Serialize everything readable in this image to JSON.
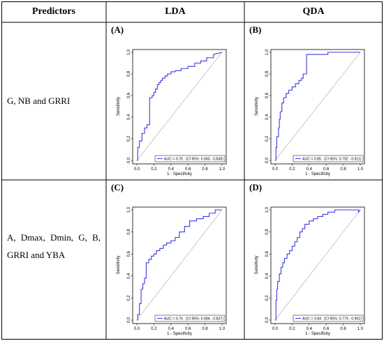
{
  "table": {
    "headers": {
      "predictors": "Predictors",
      "lda": "LDA",
      "qda": "QDA"
    },
    "rows": [
      {
        "predictors": "G, NB and GRRI"
      },
      {
        "predictors": "A, Dmax, Dmin, G, B, GRRI and YBA"
      }
    ]
  },
  "chart_data": [
    {
      "type": "line",
      "panel_label": "(A)",
      "xlabel": "1 - Specificity",
      "ylabel": "Sensitivity",
      "xlim": [
        0,
        1
      ],
      "ylim": [
        0,
        1
      ],
      "xticks": [
        "0.0",
        "0.2",
        "0.4",
        "0.6",
        "0.8",
        "1.0"
      ],
      "yticks": [
        "0.0",
        "0.2",
        "0.4",
        "0.6",
        "0.8",
        "1.0"
      ],
      "legend": {
        "line": "AUC = 0.76",
        "ci": "(CI 95%: 0.683 - 0.838)",
        "position": "bottom-right"
      },
      "series": [
        {
          "color": "#3a3ae0",
          "x": [
            0,
            0.01,
            0.01,
            0.03,
            0.03,
            0.06,
            0.06,
            0.09,
            0.09,
            0.12,
            0.12,
            0.15,
            0.15,
            0.18,
            0.18,
            0.2,
            0.2,
            0.22,
            0.22,
            0.24,
            0.24,
            0.26,
            0.26,
            0.28,
            0.28,
            0.3,
            0.3,
            0.33,
            0.33,
            0.36,
            0.36,
            0.4,
            0.4,
            0.45,
            0.45,
            0.52,
            0.52,
            0.6,
            0.6,
            0.68,
            0.68,
            0.75,
            0.75,
            0.82,
            0.82,
            0.9,
            0.9,
            1.0
          ],
          "y": [
            0,
            0,
            0.12,
            0.12,
            0.18,
            0.18,
            0.25,
            0.25,
            0.3,
            0.3,
            0.33,
            0.33,
            0.58,
            0.58,
            0.6,
            0.6,
            0.63,
            0.63,
            0.66,
            0.66,
            0.7,
            0.7,
            0.72,
            0.72,
            0.74,
            0.74,
            0.76,
            0.76,
            0.78,
            0.78,
            0.8,
            0.8,
            0.82,
            0.82,
            0.83,
            0.83,
            0.85,
            0.85,
            0.87,
            0.87,
            0.9,
            0.9,
            0.92,
            0.92,
            0.95,
            0.95,
            0.98,
            1.0
          ]
        },
        {
          "color": "#b5b5b5",
          "x": [
            0,
            1
          ],
          "y": [
            0,
            1
          ]
        }
      ]
    },
    {
      "type": "line",
      "panel_label": "(B)",
      "xlabel": "1 - Specificity",
      "ylabel": "Sensitivity",
      "xlim": [
        0,
        1
      ],
      "ylim": [
        0,
        1
      ],
      "xticks": [
        "0.0",
        "0.2",
        "0.4",
        "0.6",
        "0.8",
        "1.0"
      ],
      "yticks": [
        "0.0",
        "0.2",
        "0.4",
        "0.6",
        "0.8",
        "1.0"
      ],
      "legend": {
        "line": "AUC = 0.85",
        "ci": "(CI 95%: 0.792 - 0.911)",
        "position": "bottom-right"
      },
      "series": [
        {
          "color": "#3a3ae0",
          "x": [
            0,
            0.01,
            0.01,
            0.02,
            0.02,
            0.04,
            0.04,
            0.05,
            0.05,
            0.06,
            0.06,
            0.08,
            0.08,
            0.1,
            0.1,
            0.13,
            0.13,
            0.16,
            0.16,
            0.2,
            0.2,
            0.24,
            0.24,
            0.28,
            0.28,
            0.31,
            0.31,
            0.33,
            0.33,
            0.37,
            0.37,
            0.62,
            0.62,
            1.0
          ],
          "y": [
            0,
            0,
            0.12,
            0.12,
            0.22,
            0.22,
            0.3,
            0.3,
            0.38,
            0.38,
            0.45,
            0.45,
            0.53,
            0.53,
            0.58,
            0.58,
            0.62,
            0.62,
            0.65,
            0.65,
            0.68,
            0.68,
            0.71,
            0.71,
            0.74,
            0.74,
            0.76,
            0.76,
            0.8,
            0.8,
            0.98,
            0.98,
            1.0,
            1.0
          ]
        },
        {
          "color": "#b5b5b5",
          "x": [
            0,
            1
          ],
          "y": [
            0,
            1
          ]
        }
      ]
    },
    {
      "type": "line",
      "panel_label": "(C)",
      "xlabel": "1 - Specificity",
      "ylabel": "Sensitivity",
      "xlim": [
        0,
        1
      ],
      "ylim": [
        0,
        1
      ],
      "xticks": [
        "0.0",
        "0.2",
        "0.4",
        "0.6",
        "0.8",
        "1.0"
      ],
      "yticks": [
        "0.0",
        "0.2",
        "0.4",
        "0.6",
        "0.8",
        "1.0"
      ],
      "legend": {
        "line": "AUC = 0.76",
        "ci": "(CI 95%: 0.684 - 0.837)",
        "position": "bottom-right"
      },
      "series": [
        {
          "color": "#3a3ae0",
          "x": [
            0,
            0.01,
            0.01,
            0.03,
            0.03,
            0.05,
            0.05,
            0.07,
            0.07,
            0.09,
            0.09,
            0.11,
            0.11,
            0.14,
            0.14,
            0.17,
            0.17,
            0.2,
            0.2,
            0.23,
            0.23,
            0.27,
            0.27,
            0.31,
            0.31,
            0.35,
            0.35,
            0.4,
            0.4,
            0.45,
            0.45,
            0.5,
            0.5,
            0.56,
            0.56,
            0.62,
            0.62,
            0.7,
            0.7,
            0.78,
            0.78,
            0.85,
            0.85,
            0.92,
            0.92,
            1.0
          ],
          "y": [
            0,
            0,
            0.05,
            0.05,
            0.15,
            0.15,
            0.28,
            0.28,
            0.33,
            0.33,
            0.38,
            0.38,
            0.52,
            0.52,
            0.55,
            0.55,
            0.58,
            0.58,
            0.6,
            0.6,
            0.63,
            0.63,
            0.65,
            0.65,
            0.68,
            0.68,
            0.7,
            0.7,
            0.72,
            0.72,
            0.75,
            0.75,
            0.8,
            0.8,
            0.85,
            0.85,
            0.9,
            0.9,
            0.92,
            0.92,
            0.94,
            0.94,
            0.97,
            0.97,
            1.0,
            1.0
          ]
        },
        {
          "color": "#b5b5b5",
          "x": [
            0,
            1
          ],
          "y": [
            0,
            1
          ]
        }
      ]
    },
    {
      "type": "line",
      "panel_label": "(D)",
      "xlabel": "1 - Specificity",
      "ylabel": "Sensitivity",
      "xlim": [
        0,
        1
      ],
      "ylim": [
        0,
        1
      ],
      "xticks": [
        "0.0",
        "0.2",
        "0.4",
        "0.6",
        "0.8",
        "1.0"
      ],
      "yticks": [
        "0.0",
        "0.2",
        "0.4",
        "0.6",
        "0.8",
        "1.0"
      ],
      "legend": {
        "line": "AUC = 0.84",
        "ci": "(CI 95%: 0.779 - 0.902)",
        "position": "bottom-right"
      },
      "series": [
        {
          "color": "#3a3ae0",
          "x": [
            0,
            0.01,
            0.01,
            0.02,
            0.02,
            0.03,
            0.03,
            0.05,
            0.05,
            0.07,
            0.07,
            0.09,
            0.09,
            0.11,
            0.11,
            0.14,
            0.14,
            0.17,
            0.17,
            0.2,
            0.2,
            0.23,
            0.23,
            0.26,
            0.26,
            0.29,
            0.29,
            0.32,
            0.32,
            0.35,
            0.35,
            0.4,
            0.4,
            0.45,
            0.45,
            0.5,
            0.5,
            0.56,
            0.56,
            0.62,
            0.62,
            0.7,
            0.7,
            0.98,
            0.98,
            1.0
          ],
          "y": [
            0,
            0,
            0.18,
            0.18,
            0.28,
            0.28,
            0.35,
            0.35,
            0.42,
            0.42,
            0.48,
            0.48,
            0.52,
            0.52,
            0.56,
            0.56,
            0.6,
            0.6,
            0.63,
            0.63,
            0.67,
            0.67,
            0.71,
            0.71,
            0.75,
            0.75,
            0.8,
            0.8,
            0.83,
            0.83,
            0.87,
            0.87,
            0.9,
            0.9,
            0.92,
            0.92,
            0.94,
            0.94,
            0.96,
            0.96,
            0.98,
            0.98,
            1.0,
            1.0,
            0.98,
            1.0
          ]
        },
        {
          "color": "#b5b5b5",
          "x": [
            0,
            1
          ],
          "y": [
            0,
            1
          ]
        }
      ]
    }
  ]
}
